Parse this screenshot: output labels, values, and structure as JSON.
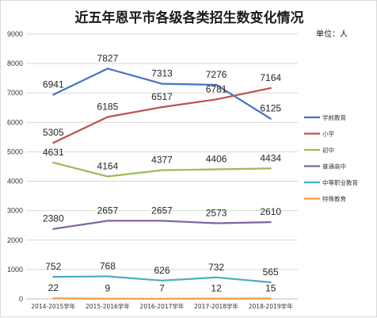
{
  "chart_data": {
    "type": "line",
    "title": "近五年恩平市各级各类招生数变化情况",
    "unit_label": "单位：人",
    "categories": [
      "2014-2015学年",
      "2015-2016学年",
      "2016-2017学年",
      "2017-2018学年",
      "2018-2019学年"
    ],
    "ylim": [
      0,
      9000
    ],
    "yticks": [
      0,
      1000,
      2000,
      3000,
      4000,
      5000,
      6000,
      7000,
      8000,
      9000
    ],
    "grid": true,
    "legend_position": "right",
    "series": [
      {
        "name": "学前教育",
        "color": "#4472C4",
        "values": [
          6941,
          7827,
          7313,
          7276,
          6125
        ]
      },
      {
        "name": "小学",
        "color": "#C0504D",
        "values": [
          5305,
          6185,
          6517,
          6781,
          7164
        ]
      },
      {
        "name": "初中",
        "color": "#9BBB59",
        "values": [
          4631,
          4164,
          4377,
          4406,
          4434
        ]
      },
      {
        "name": "普通高中",
        "color": "#8064A2",
        "values": [
          2380,
          2657,
          2657,
          2573,
          2610
        ]
      },
      {
        "name": "中等职业教育",
        "color": "#4BACC6",
        "values": [
          752,
          768,
          626,
          732,
          565
        ]
      },
      {
        "name": "特殊教育",
        "color": "#F79646",
        "values": [
          22,
          9,
          7,
          12,
          15
        ]
      }
    ]
  }
}
